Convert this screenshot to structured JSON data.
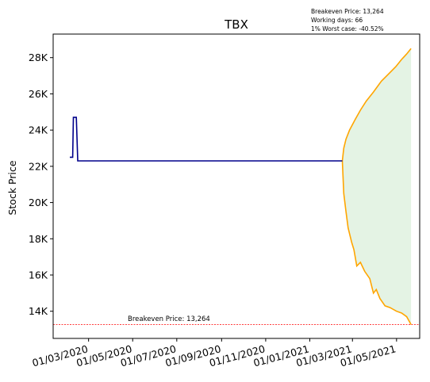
{
  "info_lines": [
    "Breakeven Price: 13,264",
    "Working days: 66",
    "1% Worst case: -40.52%"
  ],
  "chart_data": {
    "type": "line",
    "title": "TBX",
    "xlabel": "",
    "ylabel": "Stock Price",
    "x_tick_labels": [
      "01/03/2020",
      "01/05/2020",
      "01/07/2020",
      "01/09/2020",
      "01/11/2020",
      "01/01/2021",
      "01/03/2021",
      "01/05/2021"
    ],
    "y_tick_labels": [
      "14K",
      "16K",
      "18K",
      "20K",
      "22K",
      "24K",
      "26K",
      "28K"
    ],
    "ylim": [
      12500,
      29300
    ],
    "grid": false,
    "breakeven": {
      "value": 13264,
      "label": "Breakeven Price: 13,264",
      "color": "#ff0000"
    },
    "colors": {
      "history": "#00008b",
      "projection": "#ffa500",
      "band": "#2ca02c"
    },
    "history": [
      [
        "2020-02-04",
        22500
      ],
      [
        "2020-02-08",
        22500
      ],
      [
        "2020-02-09",
        24700
      ],
      [
        "2020-02-13",
        24700
      ],
      [
        "2020-02-15",
        22300
      ],
      [
        "2021-02-15",
        22300
      ]
    ],
    "upper_path": [
      [
        "2021-02-15",
        22300
      ],
      [
        "2021-02-17",
        23000
      ],
      [
        "2021-02-20",
        23500
      ],
      [
        "2021-02-25",
        24000
      ],
      [
        "2021-03-05",
        24600
      ],
      [
        "2021-03-12",
        25100
      ],
      [
        "2021-03-20",
        25600
      ],
      [
        "2021-03-30",
        26100
      ],
      [
        "2021-04-10",
        26700
      ],
      [
        "2021-04-20",
        27100
      ],
      [
        "2021-04-30",
        27500
      ],
      [
        "2021-05-08",
        27900
      ],
      [
        "2021-05-15",
        28200
      ],
      [
        "2021-05-21",
        28500
      ]
    ],
    "lower_path": [
      [
        "2021-02-15",
        22300
      ],
      [
        "2021-02-17",
        20500
      ],
      [
        "2021-02-20",
        19500
      ],
      [
        "2021-02-23",
        18600
      ],
      [
        "2021-02-28",
        17800
      ],
      [
        "2021-03-03",
        17400
      ],
      [
        "2021-03-07",
        16500
      ],
      [
        "2021-03-12",
        16700
      ],
      [
        "2021-03-18",
        16200
      ],
      [
        "2021-03-25",
        15800
      ],
      [
        "2021-03-30",
        15000
      ],
      [
        "2021-04-03",
        15200
      ],
      [
        "2021-04-08",
        14700
      ],
      [
        "2021-04-15",
        14300
      ],
      [
        "2021-04-22",
        14200
      ],
      [
        "2021-05-01",
        14000
      ],
      [
        "2021-05-08",
        13900
      ],
      [
        "2021-05-15",
        13700
      ],
      [
        "2021-05-21",
        13264
      ]
    ]
  }
}
